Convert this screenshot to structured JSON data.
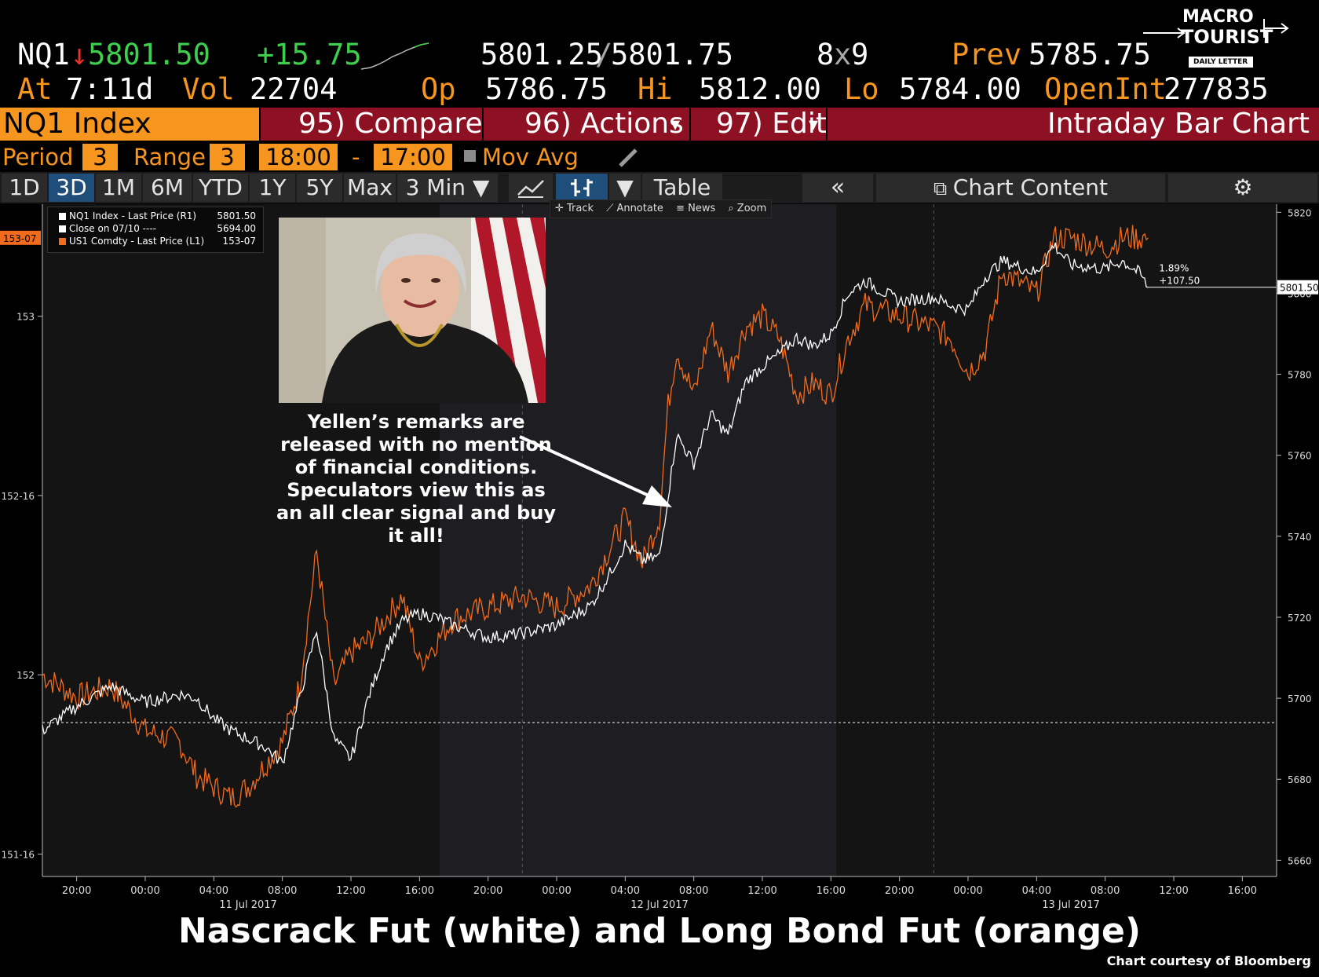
{
  "header": {
    "ticker": "NQ1",
    "arrow": "↓",
    "last_price": "5801.50",
    "change": "+15.75",
    "bid": "5801.25",
    "slash": "/",
    "ask": "5801.75",
    "size_bid": "8",
    "size_x": "x",
    "size_ask": "9",
    "prev_label": "Prev",
    "prev_value": "5785.75",
    "at_label": "At",
    "at_value": "7:11d",
    "vol_label": "Vol",
    "vol_value": "22704",
    "open_label": "Op",
    "open_value": "5786.75",
    "high_label": "Hi",
    "high_value": "5812.00",
    "low_label": "Lo",
    "low_value": "5784.00",
    "oi_label": "OpenInt",
    "oi_value": "277835"
  },
  "logo": {
    "line1": "MACRO",
    "line2": "TOURIST",
    "line3": "DAILY LETTER"
  },
  "tabbar": {
    "security": "NQ1 Index",
    "compare": "95) Compare",
    "actions": "96) Actions",
    "actions_caret": "▾",
    "edit": "97) Edit",
    "edit_caret": "▾",
    "title": "Intraday Bar Chart"
  },
  "settings": {
    "period_label": "Period",
    "period_value": "3",
    "range_label": "Range",
    "range_value": "3",
    "start_time": "18:00",
    "dash": "-",
    "end_time": "17:00",
    "mov_avg_label": "Mov Avg"
  },
  "toolbar": {
    "ranges": [
      "1D",
      "3D",
      "1M",
      "6M",
      "YTD",
      "1Y",
      "5Y",
      "Max"
    ],
    "selected_range": "3D",
    "interval": "3 Min ▼",
    "chart_caret": "▼",
    "table": "Table",
    "collapse": "«",
    "chart_content": "Chart Content"
  },
  "tools": [
    "Track",
    "Annotate",
    "News",
    "Zoom"
  ],
  "annotation": "Yellen’s remarks are released with no mention of financial conditions.  Speculators view this as an all clear signal and buy it all!",
  "caption": "Nascrack Fut (white) and Long Bond Fut (orange)",
  "credit": "Chart courtesy of Bloomberg",
  "colors": {
    "nq": "#ffffff",
    "bond": "#f26b1d",
    "accent": "#f7961e",
    "tabbar": "#8d1122"
  },
  "chart_data": {
    "type": "line",
    "legend": [
      {
        "label": "NQ1 Index - Last Price (R1)",
        "value": "5801.50",
        "color": "#ffffff"
      },
      {
        "label": "Close on 07/10 ----",
        "value": "5694.00",
        "color": "#ffffff"
      },
      {
        "label": "US1 Comdty - Last Price (L1)",
        "value": "153-07",
        "color": "#f26b1d"
      }
    ],
    "x_ticks": [
      "20:00",
      "00:00",
      "04:00",
      "08:00",
      "12:00",
      "16:00",
      "20:00",
      "00:00",
      "04:00",
      "08:00",
      "12:00",
      "16:00",
      "20:00",
      "00:00",
      "04:00",
      "08:00",
      "12:00",
      "16:00"
    ],
    "x_dates": [
      "11 Jul 2017",
      "12 Jul 2017",
      "13 Jul 2017"
    ],
    "x_range_hours": [
      -6,
      66
    ],
    "right_axis": {
      "ticks": [
        "5820",
        "5800",
        "5780",
        "5760",
        "5740",
        "5720",
        "5700",
        "5680",
        "5660"
      ],
      "range": [
        5656,
        5822
      ]
    },
    "left_axis": {
      "ticks": [
        "153",
        "152-16",
        "152",
        "151-16"
      ],
      "range_32nds_from_151": [
        14,
        74
      ]
    },
    "bond_last_label": "153-07",
    "nq_last_label": "5801.50",
    "change_pct": "1.89%",
    "change_abs": "+107.50",
    "prev_close": 5694.0,
    "series": [
      {
        "name": "NQ1 Index - Last Price (R1)",
        "axis": "right",
        "hours": [
          -6,
          -4,
          -2,
          0,
          2,
          3,
          4,
          5,
          6,
          7,
          8,
          9,
          10,
          11,
          12,
          13,
          14,
          15,
          16,
          17,
          18,
          20,
          22,
          24,
          26,
          27,
          28,
          29,
          30,
          30.5,
          31,
          32,
          33,
          34,
          35,
          36,
          37,
          38,
          39,
          40,
          41,
          42,
          44,
          46,
          47,
          48,
          49,
          50,
          52,
          53,
          54,
          56,
          57,
          58,
          58.5
        ],
        "values": [
          5692,
          5698,
          5703,
          5699,
          5701,
          5700,
          5695,
          5692,
          5690,
          5688,
          5684,
          5700,
          5717,
          5690,
          5685,
          5700,
          5712,
          5719,
          5721,
          5720,
          5718,
          5715,
          5716,
          5718,
          5723,
          5730,
          5738,
          5734,
          5735,
          5750,
          5765,
          5758,
          5770,
          5765,
          5778,
          5782,
          5785,
          5789,
          5787,
          5790,
          5800,
          5803,
          5798,
          5799,
          5797,
          5796,
          5804,
          5808,
          5805,
          5812,
          5807,
          5806,
          5808,
          5805,
          5801.5
        ]
      },
      {
        "name": "US1 Comdty - Last Price (L1)",
        "axis": "left",
        "hours": [
          -6,
          -4,
          -2,
          0,
          2,
          3,
          4,
          5,
          6,
          7,
          8,
          9,
          10,
          11,
          12,
          13,
          14,
          15,
          16,
          17,
          18,
          20,
          22,
          24,
          26,
          27,
          28,
          29,
          30,
          30.5,
          31,
          32,
          33,
          34,
          35,
          36,
          37,
          38,
          39,
          40,
          41,
          42,
          44,
          46,
          47,
          48,
          49,
          50,
          52,
          53,
          54,
          56,
          57,
          58,
          58.5
        ],
        "values": [
          32,
          30,
          31,
          27,
          26,
          23,
          22,
          21,
          22,
          24,
          26,
          31,
          43,
          31,
          34,
          35,
          37,
          39,
          33,
          35,
          37,
          38,
          39,
          38,
          40,
          43,
          46,
          42,
          46,
          56,
          61,
          57,
          63,
          59,
          63,
          64,
          62,
          57,
          58,
          57,
          62,
          65,
          64,
          63,
          62,
          59,
          61,
          68,
          66,
          71,
          71,
          70,
          71,
          71,
          71
        ]
      }
    ]
  }
}
